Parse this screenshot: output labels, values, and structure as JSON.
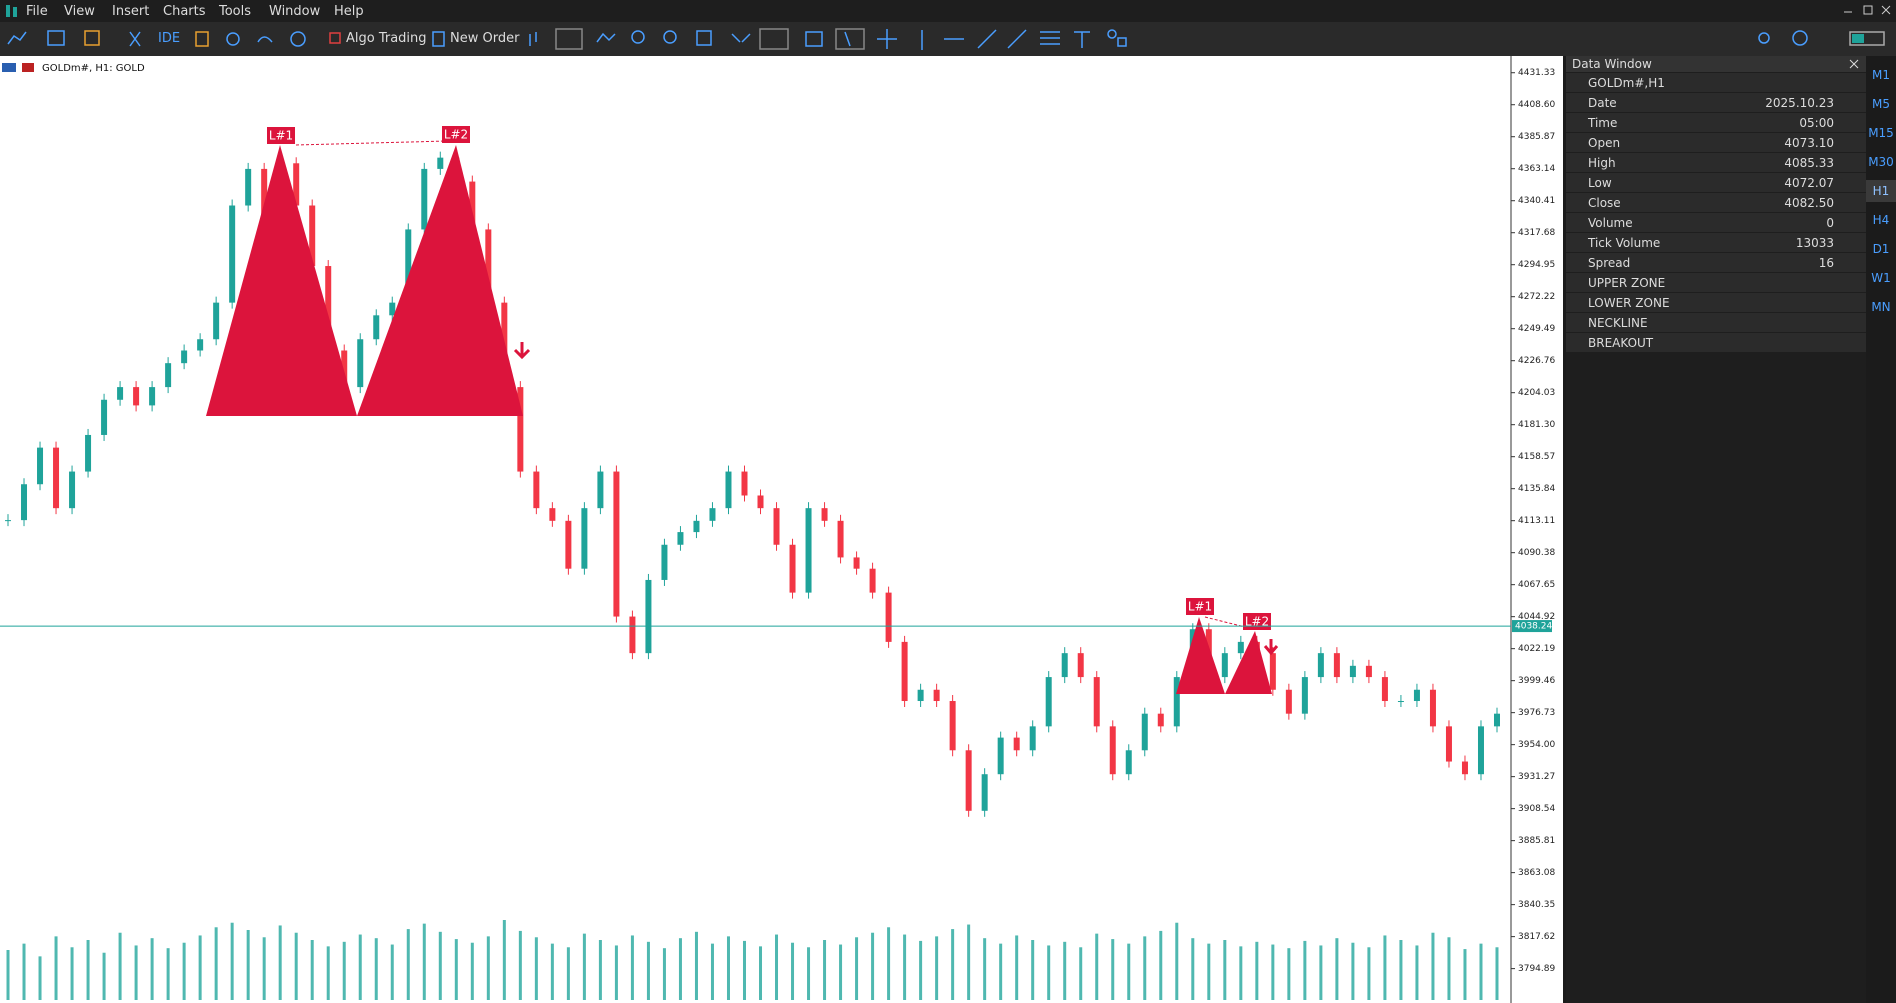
{
  "menu": [
    "File",
    "View",
    "Insert",
    "Charts",
    "Tools",
    "Window",
    "Help"
  ],
  "toolbar": {
    "ide": "IDE",
    "algo": "Algo Trading",
    "order": "New Order"
  },
  "chart_data": {
    "type": "candlestick",
    "title": "GOLDm#, H1:  GOLD",
    "values": [
      4113.5,
      4139,
      4165,
      4122,
      4148,
      4174,
      4199,
      4208,
      4195,
      4208,
      4225,
      4234,
      4242,
      4268,
      4337,
      4363,
      4328,
      4367,
      4337,
      4294,
      4234,
      4208,
      4242,
      4259,
      4268,
      4320,
      4363,
      4371,
      4354,
      4320,
      4268,
      4208,
      4148,
      4122,
      4113,
      4079,
      4122,
      4148,
      4045,
      4019,
      4071,
      4096,
      4105,
      4113,
      4122,
      4148,
      4131,
      4122,
      4096,
      4062,
      4122,
      4113,
      4087,
      4079,
      4062,
      4027,
      3985,
      3993,
      3985,
      3950,
      3907,
      3933,
      3959,
      3950,
      3967,
      4002,
      4019,
      4002,
      3967,
      3933,
      3950,
      3976,
      3967,
      4002,
      4036,
      4002,
      4019,
      4027,
      4019,
      3993,
      3976,
      4002,
      4019,
      4002,
      4010,
      4002,
      3985,
      3985,
      3993,
      3967,
      3942,
      3933,
      3967,
      3976
    ],
    "volume": [
      55,
      62,
      48,
      70,
      58,
      66,
      52,
      74,
      60,
      68,
      57,
      63,
      71,
      80,
      85,
      77,
      69,
      82,
      74,
      66,
      59,
      64,
      72,
      68,
      61,
      78,
      84,
      75,
      67,
      63,
      70,
      88,
      76,
      69,
      62,
      58,
      73,
      66,
      60,
      71,
      64,
      57,
      68,
      75,
      62,
      70,
      65,
      59,
      72,
      63,
      58,
      66,
      61,
      69,
      74,
      80,
      72,
      65,
      70,
      78,
      83,
      68,
      62,
      71,
      66,
      60,
      64,
      58,
      73,
      67,
      62,
      70,
      76,
      85,
      68,
      62,
      66,
      59,
      64,
      61,
      57,
      65,
      60,
      68,
      63,
      58,
      71,
      66,
      60,
      74,
      69,
      56,
      62,
      58
    ],
    "up_color": "#1fa39a",
    "down_color": "#f23645",
    "volume_color": "#4fb8b0",
    "ylim": [
      3772.6,
      4442.5
    ],
    "yticks": [
      4431.33,
      {
        "value": 4408.6,
        "label": "4408.60"
      },
      4385.87,
      4363.14,
      4340.41,
      4317.68,
      4294.95,
      4272.22,
      4249.49,
      4226.76,
      4204.03,
      {
        "value": 4181.3,
        "label": "4181.30"
      },
      4158.57,
      4135.84,
      4113.11,
      4090.38,
      4067.65,
      4044.92,
      4022.19,
      3999.46,
      3976.73,
      {
        "value": 3954,
        "label": "3954.00"
      },
      3931.27,
      3908.54,
      3885.81,
      3863.08,
      3840.35,
      3817.62,
      3794.89
    ],
    "current_price": 4038.24,
    "patterns": [
      {
        "labels": [
          "L#1",
          "L#2"
        ]
      },
      {
        "labels": [
          "L#1",
          "L#2"
        ]
      }
    ]
  },
  "data_window": {
    "title": "Data Window",
    "symbol": "GOLDm#,H1",
    "rows": [
      [
        "Date",
        "2025.10.23"
      ],
      [
        "Time",
        "05:00"
      ],
      [
        "Open",
        "4073.10"
      ],
      [
        "High",
        "4085.33"
      ],
      [
        "Low",
        "4072.07"
      ],
      [
        "Close",
        "4082.50"
      ],
      [
        "Volume",
        "0"
      ],
      [
        "Tick Volume",
        "13033"
      ],
      [
        "Spread",
        "16"
      ]
    ],
    "indicators": [
      "UPPER ZONE",
      "LOWER ZONE",
      "NECKLINE",
      "BREAKOUT"
    ]
  },
  "timeframes": [
    "M1",
    "M5",
    "M15",
    "M30",
    "H1",
    "H4",
    "D1",
    "W1",
    "MN"
  ]
}
